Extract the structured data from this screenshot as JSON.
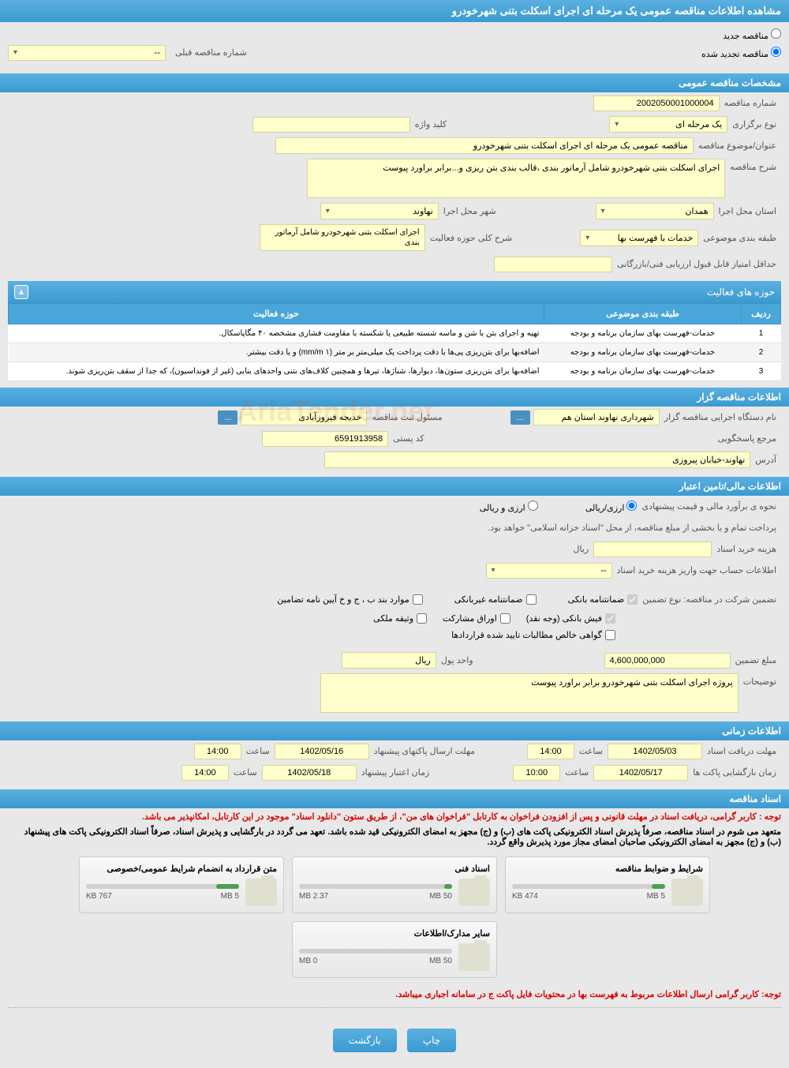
{
  "pageTitle": "مشاهده اطلاعات مناقصه عمومی یک مرحله ای اجرای اسکلت بتنی شهرخودرو",
  "radios": {
    "new": "مناقصه جدید",
    "renewed": "مناقصه تجدید شده",
    "prevLabel": "شماره مناقصه قبلی",
    "prevValue": "--"
  },
  "section1": {
    "header": "مشخصات مناقصه عمومی",
    "tenderNoLabel": "شماره مناقصه",
    "tenderNo": "2002050001000004",
    "typeLabel": "نوع برگزاری",
    "typeValue": "یک مرحله ای",
    "keywordLabel": "کلید واژه",
    "keywordValue": "",
    "subjectLabel": "عنوان/موضوع مناقصه",
    "subjectValue": "مناقصه عمومی یک مرحله ای اجرای اسکلت بتنی شهرخودرو",
    "descLabel": "شرح مناقصه",
    "descValue": "اجرای اسکلت بتنی شهرخودرو شامل آرماتور بندی ،قالب بندی بتن ریزی و...برابر براورد پیوست",
    "provinceLabel": "استان محل اجرا",
    "provinceValue": "همدان",
    "cityLabel": "شهر محل اجرا",
    "cityValue": "نهاوند",
    "classLabel": "طبقه بندی موضوعی",
    "classValue": "خدمات با فهرست بها",
    "activityDescLabel": "شرح کلی حوزه فعالیت",
    "activityDescValue": "اجرای اسکلت بتنی شهرخودرو شامل آرماتور بندی",
    "minScoreLabel": "حداقل امتیاز قابل قبول ارزیابی فنی/بازرگانی",
    "minScoreValue": ""
  },
  "activityTable": {
    "header": "حوزه های فعالیت",
    "cols": {
      "row": "ردیف",
      "class": "طبقه بندی موضوعی",
      "activity": "حوزه فعالیت"
    },
    "rows": [
      {
        "n": "1",
        "c": "خدمات-فهرست بهای سازمان برنامه و بودجه",
        "a": "تهیه و اجرای بتن با شن و ماسه شسته طبیعی یا شکسته با مقاومت فشاری مشخصه ۴۰ مگاپاسکال."
      },
      {
        "n": "2",
        "c": "خدمات-فهرست بهای سازمان برنامه و بودجه",
        "a": "اضافه‌بها برای بتن‌ریزی پی‌ها با دقت پرداخت یک میلی‌متر بر متر (۱ mm/m) و یا دقت بیشتر."
      },
      {
        "n": "3",
        "c": "خدمات-فهرست بهای سازمان برنامه و بودجه",
        "a": "اضافه‌بها برای بتن‌ریزی ستون‌ها، دیوارها، شناژها، تیرها و همچنین کلاف‌های بتنی واحدهای بنایی (غیر از فونداسیون)، که جدا از سقف بتن‌ریزی شوند."
      }
    ]
  },
  "section2": {
    "header": "اطلاعات مناقصه گزار",
    "orgLabel": "نام دستگاه اجرایی مناقصه گزار",
    "orgValue": "شهرداری نهاوند استان هم",
    "btnMore": "...",
    "responsibleLabel": "مسئول ثبت مناقصه",
    "responsibleValue": "خدیجه فیروزآبادی",
    "referenceLabel": "مرجع پاسخگویی",
    "postalLabel": "کد پستی",
    "postalValue": "6591913958",
    "addressLabel": "آدرس",
    "addressValue": "نهاوند-خیابان پیروزی"
  },
  "section3": {
    "header": "اطلاعات مالی/تامین اعتبار",
    "estimateLabel": "نحوه ی برآورد مالی و قیمت پیشنهادی",
    "opt1": "ارزی/ریالی",
    "opt2": "ارزی و ریالی",
    "paymentNote": "پرداخت تمام و یا بخشی از مبلغ مناقصه، از محل \"اسناد خزانه اسلامی\" خواهد بود.",
    "docCostLabel": "هزینه خرید اسناد",
    "docCostValue": "",
    "currency": "ریال",
    "accountLabel": "اطلاعات حساب جهت واریز هزینه خرید اسناد",
    "accountValue": "--",
    "guaranteeTypeLabel": "تضمین شرکت در مناقصه:    نوع تضمین",
    "chk1": "ضمانتنامه بانکی",
    "chk2": "ضمانتنامه غیربانکی",
    "chk3": "موارد بند ب ، ج و خ آیین نامه تضامین",
    "chk4": "فیش بانکی (وجه نقد)",
    "chk5": "اوراق مشارکت",
    "chk6": "وثیقه ملکی",
    "chk7": "گواهی خالص مطالبات تایید شده قراردادها",
    "amountLabel": "مبلغ تضمین",
    "amountValue": "4,600,000,000",
    "unitLabel": "واحد پول",
    "unitValue": "ریال",
    "notesLabel": "توضیحات",
    "notesValue": "پروژه اجرای اسکلت بتنی شهرخودرو برابر براورد پیوست"
  },
  "section4": {
    "header": "اطلاعات زمانی",
    "docDeadlineLabel": "مهلت دریافت اسناد",
    "docDeadlineDate": "1402/05/03",
    "timeLabel": "ساعت",
    "docDeadlineTime": "14:00",
    "sendDeadlineLabel": "مهلت ارسال پاکتهای پیشنهاد",
    "sendDeadlineDate": "1402/05/16",
    "sendDeadlineTime": "14:00",
    "openLabel": "زمان بازگشایی پاکت ها",
    "openDate": "1402/05/17",
    "openTime": "10:00",
    "validLabel": "زمان اعتبار پیشنهاد",
    "validDate": "1402/05/18",
    "validTime": "14:00"
  },
  "section5": {
    "header": "اسناد مناقصه",
    "notice1": "توجه : کاربر گرامی، دریافت اسناد در مهلت قانونی و پس از افزودن فراخوان به کارتابل \"فراخوان های من\"، از طریق ستون \"دانلود اسناد\" موجود در این کارتابل، امکانپذیر می باشد.",
    "notice2": "متعهد می شوم در اسناد مناقصه، صرفاً پذیرش اسناد الکترونیکی پاکت های (ب) و (ج) مجهز به امضای الکترونیکی قید شده باشد. تعهد می گردد در بارگشایی و پذیرش اسناد، صرفاً اسناد الکترونیکی پاکت های پیشنهاد (ب) و (ج) مجهز به امضای الکترونیکی صاحبان امضای مجاز مورد پذیرش واقع گردد.",
    "notice3": "توجه: کاربر گرامی ارسال اطلاعات مربوط به فهرست بها در محتویات فایل پاکت ج در سامانه اجباری میباشد.",
    "files": [
      {
        "title": "شرایط و ضوابط مناقصه",
        "used": "474 KB",
        "total": "5 MB",
        "pct": 9
      },
      {
        "title": "اسناد فنی",
        "used": "2.37 MB",
        "total": "50 MB",
        "pct": 5
      },
      {
        "title": "متن قرارداد به انضمام شرایط عمومی/خصوصی",
        "used": "767 KB",
        "total": "5 MB",
        "pct": 15
      },
      {
        "title": "سایر مدارک/اطلاعات",
        "used": "0 MB",
        "total": "50 MB",
        "pct": 0
      }
    ]
  },
  "buttons": {
    "print": "چاپ",
    "back": "بازگشت"
  },
  "watermark": "AriaTender.net",
  "colors": {
    "headerGradStart": "#5ab0e0",
    "headerGradEnd": "#3a9ad0",
    "fieldYellow": "#ffffcc",
    "fieldBorder": "#d4d4a0",
    "bodyBg": "#e8e8e8",
    "noticeRed": "#dd0000",
    "progressGreen": "#4aa050"
  }
}
